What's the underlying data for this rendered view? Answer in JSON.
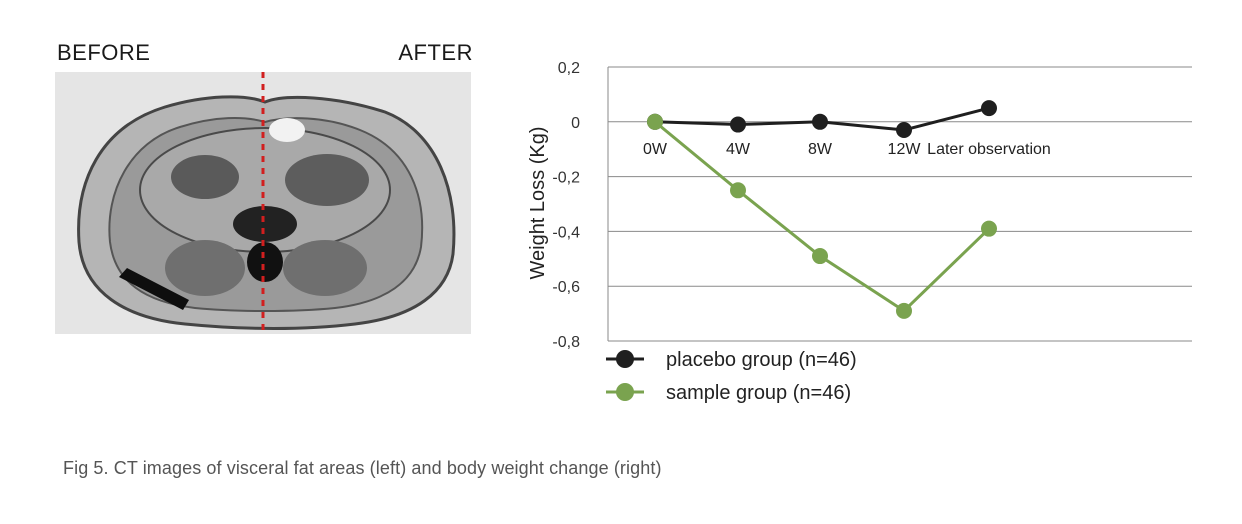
{
  "figure": {
    "caption": "Fig 5. CT images of visceral fat areas (left) and body weight change (right)"
  },
  "ct_image": {
    "before_label": "BEFORE",
    "after_label": "AFTER",
    "divider_color": "#d11f1f"
  },
  "chart_data": {
    "type": "line",
    "categories": [
      "0W",
      "4W",
      "8W",
      "12W",
      "Later observation"
    ],
    "series": [
      {
        "name": "placebo group (n=46)",
        "color": "#1f1f1f",
        "values": [
          0,
          -0.01,
          0,
          -0.03,
          0.05
        ]
      },
      {
        "name": "sample group (n=46)",
        "color": "#7aa34f",
        "values": [
          0,
          -0.25,
          -0.49,
          -0.69,
          -0.39
        ]
      }
    ],
    "ylabel": "Weight Loss (Kg)",
    "xlabel": "",
    "ylim": [
      -0.8,
      0.2
    ],
    "yticks": [
      {
        "value": 0.2,
        "label": "0,2"
      },
      {
        "value": 0,
        "label": "0"
      },
      {
        "value": -0.2,
        "label": "-0,2"
      },
      {
        "value": -0.4,
        "label": "-0,4"
      },
      {
        "value": -0.6,
        "label": "-0,6"
      },
      {
        "value": -0.8,
        "label": "-0,8"
      }
    ],
    "grid": true,
    "legend": "bottom-left"
  }
}
